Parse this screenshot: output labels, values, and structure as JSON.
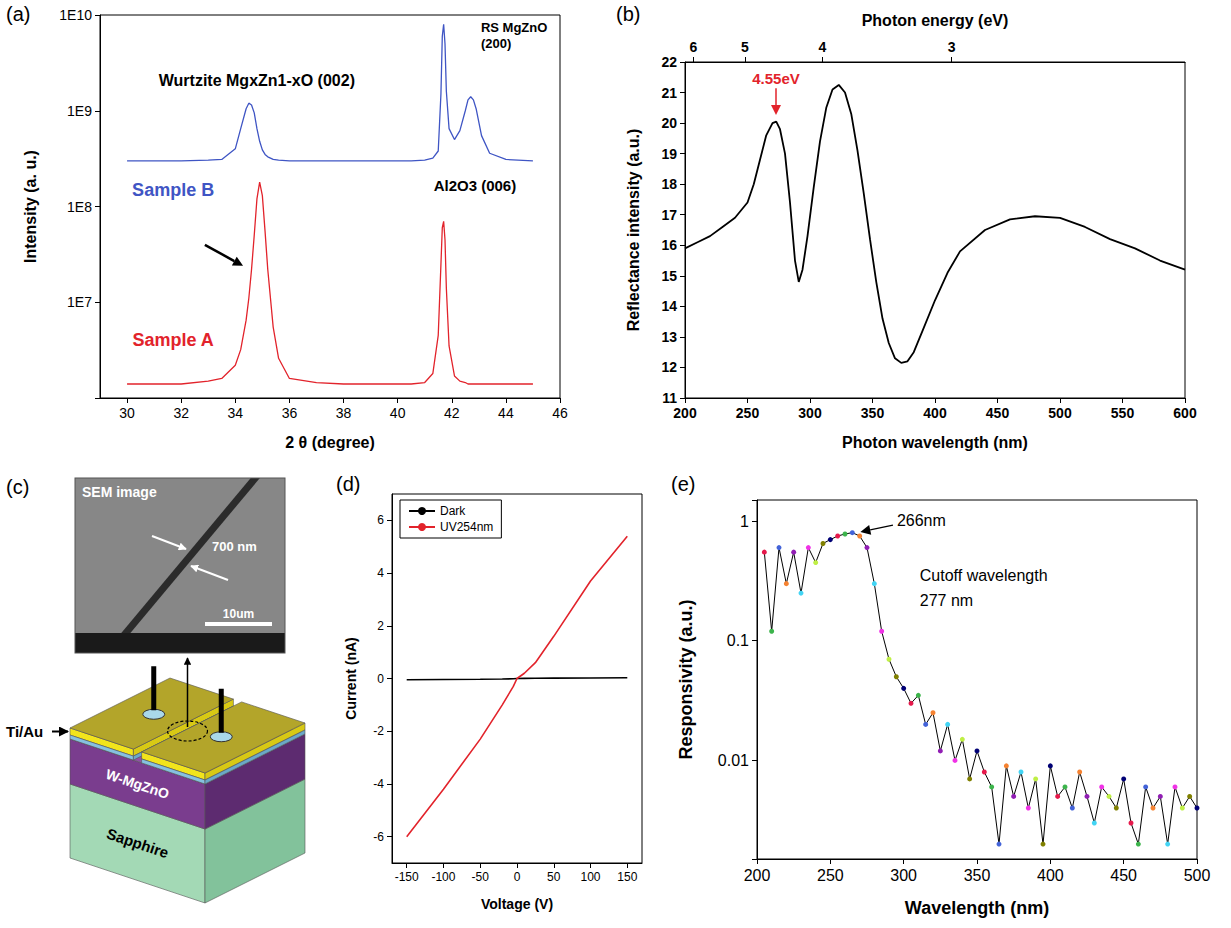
{
  "chart_data": [
    {
      "panel": "(a)",
      "type": "line",
      "log": "y",
      "xlabel": "2 θ (degree)",
      "ylabel": "Intensity (a. u.)",
      "xlim": [
        29,
        46
      ],
      "xticks": [
        30,
        32,
        34,
        36,
        38,
        40,
        42,
        44,
        46
      ],
      "ylim": [
        1000000.0,
        10000000000.0
      ],
      "yticks": [
        {
          "value": 10000000.0,
          "label": "1E7"
        },
        {
          "value": 100000000.0,
          "label": "1E8"
        },
        {
          "value": 1000000000.0,
          "label": "1E9"
        },
        {
          "value": 10000000000.0,
          "label": "1E10"
        }
      ],
      "annotations": [
        "Wurtzite MgxZn1-xO (002)",
        "RS MgZnO (200)",
        "Al2O3 (006)"
      ],
      "x": [
        30,
        31,
        32,
        33,
        33.5,
        34,
        34.2,
        34.4,
        34.5,
        34.6,
        34.7,
        34.8,
        34.9,
        35,
        35.1,
        35.2,
        35.4,
        35.6,
        36,
        37,
        38,
        39,
        40,
        40.5,
        41,
        41.3,
        41.5,
        41.6,
        41.65,
        41.7,
        41.75,
        41.8,
        41.9,
        42.1,
        42.3,
        42.5,
        42.6,
        42.7,
        42.8,
        42.9,
        43.1,
        43.4,
        44,
        45
      ],
      "series": [
        {
          "name": "Sample B",
          "color": "#3f55c4",
          "values": [
            300000000.0,
            300000000.0,
            300000000.0,
            305000000.0,
            310000000.0,
            400000000.0,
            650000000.0,
            1050000000.0,
            1200000000.0,
            1150000000.0,
            950000000.0,
            650000000.0,
            480000000.0,
            390000000.0,
            350000000.0,
            330000000.0,
            310000000.0,
            305000000.0,
            300000000.0,
            300000000.0,
            300000000.0,
            300000000.0,
            300000000.0,
            300000000.0,
            305000000.0,
            320000000.0,
            380000000.0,
            1500000000.0,
            6000000000.0,
            8000000000.0,
            5000000000.0,
            1600000000.0,
            650000000.0,
            500000000.0,
            620000000.0,
            1000000000.0,
            1300000000.0,
            1400000000.0,
            1300000000.0,
            1050000000.0,
            550000000.0,
            360000000.0,
            310000000.0,
            300000000.0
          ]
        },
        {
          "name": "Sample A",
          "color": "#e2232b",
          "values": [
            1400000.0,
            1400000.0,
            1400000.0,
            1500000.0,
            1600000.0,
            2200000.0,
            3200000.0,
            6500000.0,
            11000000.0,
            22000000.0,
            50000000.0,
            120000000.0,
            180000000.0,
            130000000.0,
            55000000.0,
            22000000.0,
            5500000.0,
            2600000.0,
            1600000.0,
            1450000.0,
            1400000.0,
            1400000.0,
            1400000.0,
            1400000.0,
            1450000.0,
            1800000.0,
            4500000.0,
            25000000.0,
            60000000.0,
            70000000.0,
            45000000.0,
            14000000.0,
            3500000.0,
            1700000.0,
            1500000.0,
            1450000.0,
            1400000.0,
            1400000.0,
            1400000.0,
            1400000.0,
            1400000.0,
            1400000.0,
            1400000.0,
            1400000.0
          ]
        }
      ]
    },
    {
      "panel": "(b)",
      "type": "line",
      "color": "#000000",
      "xlabel": "Photon wavelength (nm)",
      "ylabel": "Reflectance intensity (a.u.)",
      "x2label": "Photon energy (eV)",
      "xlim": [
        200,
        600
      ],
      "xticks": [
        200,
        250,
        300,
        350,
        400,
        450,
        500,
        550,
        600
      ],
      "x2lim": [
        200,
        600
      ],
      "x2ticks": [
        {
          "value": 206.7,
          "label": "6"
        },
        {
          "value": 248,
          "label": "5"
        },
        {
          "value": 310,
          "label": "4"
        },
        {
          "value": 413.3,
          "label": "3"
        }
      ],
      "ylim": [
        11,
        22
      ],
      "yticks": [
        11,
        12,
        13,
        14,
        15,
        16,
        17,
        18,
        19,
        20,
        21,
        22
      ],
      "annotations": [
        "4.55eV"
      ],
      "x": [
        200,
        210,
        220,
        230,
        240,
        250,
        255,
        260,
        265,
        270,
        273,
        276,
        280,
        284,
        288,
        291,
        294,
        298,
        303,
        308,
        313,
        318,
        323,
        328,
        333,
        338,
        343,
        348,
        353,
        358,
        363,
        368,
        373,
        378,
        383,
        390,
        400,
        410,
        420,
        440,
        460,
        480,
        500,
        520,
        540,
        560,
        580,
        600
      ],
      "values": [
        15.9,
        16.1,
        16.3,
        16.6,
        16.9,
        17.4,
        18.0,
        18.8,
        19.6,
        20.0,
        20.05,
        19.8,
        19.0,
        17.4,
        15.5,
        14.8,
        15.2,
        16.3,
        17.9,
        19.4,
        20.5,
        21.1,
        21.25,
        21.0,
        20.3,
        19.1,
        17.7,
        16.2,
        14.8,
        13.6,
        12.8,
        12.3,
        12.15,
        12.2,
        12.5,
        13.2,
        14.2,
        15.1,
        15.8,
        16.5,
        16.85,
        16.95,
        16.9,
        16.6,
        16.2,
        15.9,
        15.5,
        15.2
      ]
    },
    {
      "panel": "(d)",
      "type": "line",
      "legend": "upper left",
      "xlabel": "Voltage (V)",
      "ylabel": "Current (nA)",
      "xlim": [
        -170,
        170
      ],
      "xticks": [
        -150,
        -100,
        -50,
        0,
        50,
        100,
        150
      ],
      "ylim": [
        -7,
        7
      ],
      "yticks": [
        -6,
        -4,
        -2,
        0,
        2,
        4,
        6
      ],
      "x": [
        -150,
        -100,
        -50,
        -20,
        -5,
        0,
        10,
        25,
        50,
        100,
        150
      ],
      "series": [
        {
          "name": "Dark",
          "color": "#000000",
          "values": [
            -0.05,
            -0.04,
            -0.03,
            -0.02,
            -0.01,
            0,
            0.005,
            0.01,
            0.015,
            0.02,
            0.03
          ]
        },
        {
          "name": "UV254nm",
          "color": "#e2232b",
          "values": [
            -6.0,
            -4.2,
            -2.3,
            -1.0,
            -0.3,
            0,
            0.2,
            0.6,
            1.6,
            3.7,
            5.4
          ]
        }
      ]
    },
    {
      "panel": "(e)",
      "type": "line",
      "log": "y",
      "marker": "circle",
      "color": "#000000",
      "xlabel": "Wavelength (nm)",
      "ylabel": "Responsivity (a.u.)",
      "xlim": [
        200,
        500
      ],
      "xticks": [
        200,
        250,
        300,
        350,
        400,
        450,
        500
      ],
      "ylim": [
        0.0015,
        1.5
      ],
      "yticks": [
        0.01,
        0.1,
        1
      ],
      "annotations": [
        "266nm",
        "Cutoff wavelength",
        "277 nm"
      ],
      "x": [
        205,
        210,
        215,
        220,
        225,
        230,
        235,
        240,
        245,
        250,
        255,
        260,
        265,
        270,
        275,
        280,
        285,
        290,
        295,
        300,
        305,
        310,
        315,
        320,
        325,
        330,
        335,
        340,
        345,
        350,
        355,
        360,
        365,
        370,
        375,
        380,
        385,
        390,
        395,
        400,
        405,
        410,
        415,
        420,
        425,
        430,
        435,
        440,
        445,
        450,
        455,
        460,
        465,
        470,
        475,
        480,
        485,
        490,
        495,
        500
      ],
      "values": [
        0.55,
        0.12,
        0.6,
        0.3,
        0.55,
        0.25,
        0.6,
        0.45,
        0.65,
        0.7,
        0.75,
        0.78,
        0.8,
        0.75,
        0.6,
        0.3,
        0.12,
        0.07,
        0.05,
        0.04,
        0.03,
        0.035,
        0.02,
        0.025,
        0.012,
        0.02,
        0.01,
        0.015,
        0.007,
        0.012,
        0.008,
        0.006,
        0.002,
        0.009,
        0.005,
        0.008,
        0.004,
        0.007,
        0.002,
        0.009,
        0.005,
        0.006,
        0.004,
        0.008,
        0.005,
        0.003,
        0.006,
        0.005,
        0.004,
        0.007,
        0.003,
        0.002,
        0.006,
        0.004,
        0.005,
        0.002,
        0.006,
        0.004,
        0.005,
        0.004
      ],
      "colors": [
        "#e6194b",
        "#3cb44b",
        "#4363d8",
        "#f58231",
        "#911eb4",
        "#42d4f4",
        "#f032e6",
        "#bfef45",
        "#808000",
        "#000075",
        "#e6194b",
        "#3cb44b",
        "#4363d8",
        "#f58231",
        "#911eb4",
        "#42d4f4",
        "#f032e6",
        "#bfef45",
        "#808000",
        "#000075",
        "#e6194b",
        "#3cb44b",
        "#4363d8",
        "#f58231",
        "#911eb4",
        "#42d4f4",
        "#f032e6",
        "#bfef45",
        "#808000",
        "#000075",
        "#e6194b",
        "#3cb44b",
        "#4363d8",
        "#f58231",
        "#911eb4",
        "#42d4f4",
        "#f032e6",
        "#bfef45",
        "#808000",
        "#000075",
        "#e6194b",
        "#3cb44b",
        "#4363d8",
        "#f58231",
        "#911eb4",
        "#42d4f4",
        "#f032e6",
        "#bfef45",
        "#808000",
        "#000075",
        "#e6194b",
        "#3cb44b",
        "#4363d8",
        "#f58231",
        "#911eb4",
        "#42d4f4",
        "#f032e6",
        "#bfef45",
        "#808000",
        "#000075"
      ]
    }
  ],
  "diagram": {
    "panel": "(c)",
    "sem_image": {
      "title": "SEM image",
      "width": "700 nm",
      "scale_bar": "10um"
    },
    "layers": {
      "electrode": "Ti/Au",
      "film": "W-MgZnO",
      "substrate": "Sapphire"
    }
  }
}
